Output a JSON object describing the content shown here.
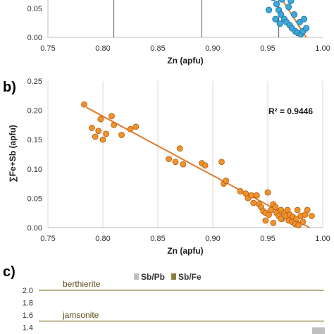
{
  "colors": {
    "blue_marker": "#3ea8dc",
    "blue_marker_edge": "#1d6f99",
    "orange_marker": "#f0922b",
    "orange_marker_edge": "#b35a10",
    "trend": "#e07a2a",
    "sb_pb": "#bfbfbf",
    "sb_fe": "#8b7d3a",
    "grid": "#d9d9d9",
    "refline": "#555555"
  },
  "chart_data": [
    {
      "panel": "a",
      "type": "scatter",
      "xlabel": "Zn (apfu)",
      "xlim": [
        0.75,
        1.0
      ],
      "x_ticks": [
        "0.75",
        "0.80",
        "0.85",
        "0.90",
        "0.95",
        "1.00"
      ],
      "ylim": [
        0.0,
        0.07
      ],
      "y_ticks_visible": [
        "0.05",
        "0.00"
      ],
      "vertical_lines_x": [
        0.81,
        0.89,
        0.96
      ],
      "trendline": {
        "x": [
          0.925,
          0.985
        ],
        "y": [
          0.068,
          0.0
        ]
      },
      "points": {
        "x": [
          0.928,
          0.932,
          0.936,
          0.94,
          0.944,
          0.947,
          0.95,
          0.952,
          0.955,
          0.958,
          0.96,
          0.962,
          0.965,
          0.967,
          0.97,
          0.972,
          0.975,
          0.977,
          0.98,
          0.982,
          0.945,
          0.951,
          0.957,
          0.963,
          0.969,
          0.974,
          0.979,
          0.985,
          0.939,
          0.948,
          0.954,
          0.961,
          0.966,
          0.971,
          0.976,
          0.983,
          0.93,
          0.943
        ],
        "y": [
          0.065,
          0.06,
          0.055,
          0.05,
          0.045,
          0.04,
          0.036,
          0.03,
          0.026,
          0.022,
          0.018,
          0.015,
          0.012,
          0.01,
          0.008,
          0.006,
          0.004,
          0.003,
          0.002,
          0.004,
          0.028,
          0.018,
          0.012,
          0.025,
          0.02,
          0.015,
          0.01,
          0.006,
          0.042,
          0.032,
          0.038,
          0.009,
          0.03,
          0.024,
          0.03,
          0.012,
          0.07,
          0.058
        ]
      }
    },
    {
      "panel": "b",
      "type": "scatter",
      "label": "b)",
      "xlabel": "Zn (apfu)",
      "ylabel": "∑Fe+Sb  (apfu)",
      "xlim": [
        0.75,
        1.0
      ],
      "ylim": [
        0.0,
        0.25
      ],
      "x_ticks": [
        "0.75",
        "0.80",
        "0.85",
        "0.90",
        "0.95",
        "1.00"
      ],
      "y_ticks": [
        "0.00",
        "0.05",
        "0.10",
        "0.15",
        "0.20",
        "0.25"
      ],
      "annotation": "R² = 0.9446",
      "trendline": {
        "x": [
          0.785,
          0.988
        ],
        "y": [
          0.205,
          0.0
        ]
      },
      "points": {
        "x": [
          0.783,
          0.79,
          0.793,
          0.796,
          0.798,
          0.8,
          0.803,
          0.808,
          0.81,
          0.817,
          0.825,
          0.83,
          0.86,
          0.866,
          0.87,
          0.873,
          0.89,
          0.893,
          0.908,
          0.91,
          0.912,
          0.925,
          0.93,
          0.932,
          0.935,
          0.937,
          0.94,
          0.942,
          0.944,
          0.946,
          0.948,
          0.95,
          0.951,
          0.953,
          0.955,
          0.957,
          0.958,
          0.96,
          0.962,
          0.963,
          0.965,
          0.966,
          0.968,
          0.969,
          0.97,
          0.972,
          0.973,
          0.975,
          0.976,
          0.977,
          0.978,
          0.98,
          0.982,
          0.984,
          0.986,
          0.99,
          0.948,
          0.955,
          0.962
        ],
        "y": [
          0.21,
          0.17,
          0.155,
          0.165,
          0.185,
          0.15,
          0.16,
          0.19,
          0.175,
          0.158,
          0.168,
          0.172,
          0.117,
          0.112,
          0.135,
          0.108,
          0.11,
          0.106,
          0.112,
          0.075,
          0.08,
          0.062,
          0.058,
          0.05,
          0.055,
          0.042,
          0.055,
          0.04,
          0.035,
          0.028,
          0.025,
          0.06,
          0.022,
          0.03,
          0.04,
          0.035,
          0.025,
          0.02,
          0.03,
          0.015,
          0.025,
          0.02,
          0.03,
          0.012,
          0.022,
          0.01,
          0.018,
          0.006,
          0.015,
          0.03,
          0.004,
          0.02,
          0.01,
          0.022,
          0.03,
          0.02,
          0.012,
          0.008,
          0.015
        ]
      }
    },
    {
      "panel": "c",
      "type": "bar",
      "label": "c)",
      "legend": [
        "Sb/Pb",
        "Sb/Fe"
      ],
      "legend_position": "top-right",
      "ylim_visible": [
        1.4,
        2.0
      ],
      "y_ticks": [
        "2.0",
        "1.8",
        "1.6",
        "1.4"
      ],
      "reference_lines": [
        {
          "name": "berthierite",
          "y": 2.0
        },
        {
          "name": "jamsonite",
          "y": 1.5
        }
      ],
      "bars": [
        {
          "series": "Sb/Pb",
          "value": 1.4
        }
      ]
    }
  ]
}
